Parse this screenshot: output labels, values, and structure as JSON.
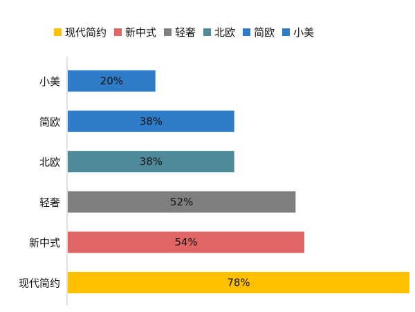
{
  "chart_data": {
    "type": "bar",
    "orientation": "horizontal",
    "categories": [
      "现代简约",
      "新中式",
      "轻奢",
      "北欧",
      "简欧",
      "小美"
    ],
    "values": [
      78,
      54,
      52,
      38,
      38,
      20
    ],
    "value_labels": [
      "78%",
      "54%",
      "52%",
      "38%",
      "38%",
      "20%"
    ],
    "colors": [
      "#FFC000",
      "#E06666",
      "#7F7F7F",
      "#4F8A9A",
      "#2E7BC8",
      "#2E7BC8"
    ],
    "xlim": [
      0,
      80
    ],
    "grid": false,
    "legend_position": "top",
    "legend": [
      {
        "label": "现代简约",
        "color": "#FFC000"
      },
      {
        "label": "新中式",
        "color": "#E06666"
      },
      {
        "label": "轻奢",
        "color": "#7F7F7F"
      },
      {
        "label": "北欧",
        "color": "#4F8A9A"
      },
      {
        "label": "简欧",
        "color": "#2E7BC8"
      },
      {
        "label": "小美",
        "color": "#2E7BC8"
      }
    ]
  }
}
